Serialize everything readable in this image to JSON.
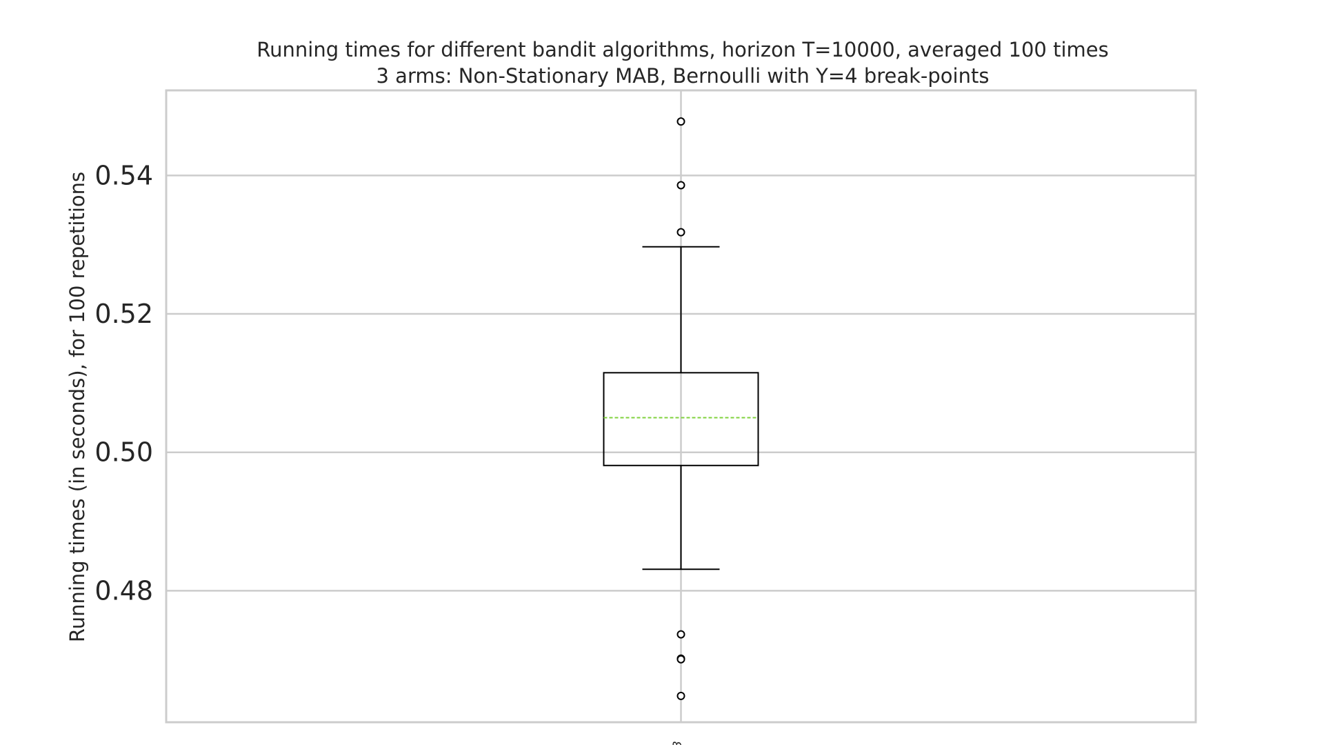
{
  "chart_data": {
    "type": "box",
    "title": "Running times for different bandit algorithms, horizon T=10000, averaged 100 times",
    "subtitle": "3 arms: Non-Stationary MAB, Bernoulli with Υ=4 break-points",
    "xlabel": "",
    "ylabel": "Running times (in seconds), for 100 repetitions",
    "ylim": [
      0.461,
      0.5523
    ],
    "yticks": [
      "0.48",
      "0.50",
      "0.52",
      "0.54"
    ],
    "grid": true,
    "categories": [
      "B"
    ],
    "boxes": [
      {
        "name": "B",
        "whisker_low": 0.4831,
        "q1": 0.4981,
        "median": 0.505,
        "q3": 0.5115,
        "whisker_high": 0.5297,
        "outliers": [
          0.5478,
          0.5386,
          0.5318,
          0.4737,
          0.4702,
          0.4701,
          0.4648
        ]
      }
    ],
    "colors": {
      "box": "#000000",
      "median": "#7fd23c",
      "grid": "#cccccc",
      "frame": "#cccccc"
    }
  }
}
